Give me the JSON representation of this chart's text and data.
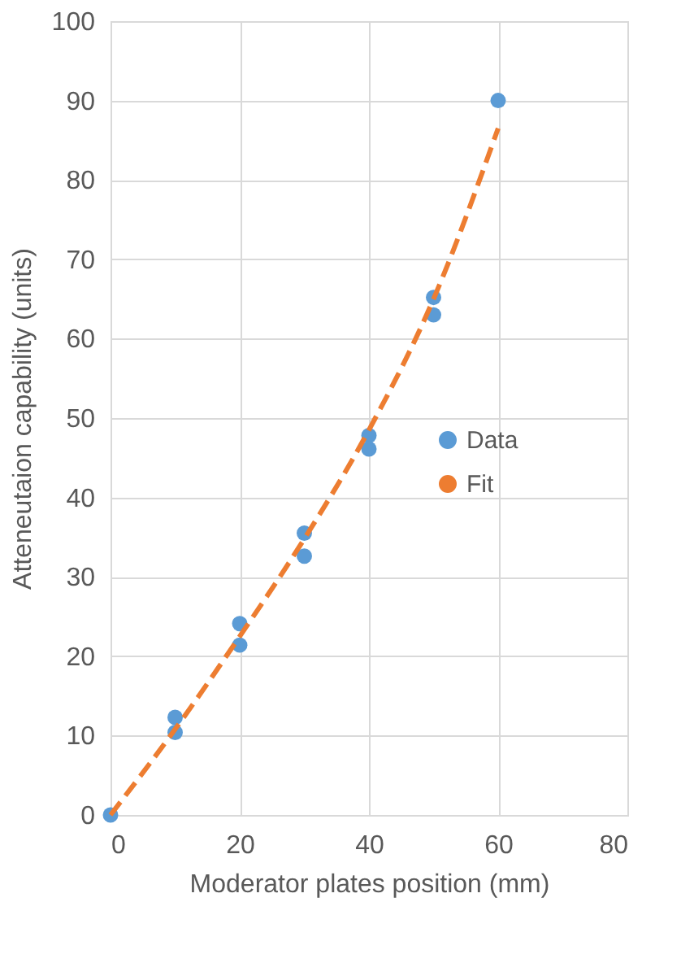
{
  "chart_data": {
    "type": "scatter",
    "xlabel": "Moderator plates position (mm)",
    "ylabel": "Atteneutaion  capability (units)",
    "xlim": [
      0,
      80
    ],
    "xticks": [
      0,
      20,
      40,
      60,
      80
    ],
    "ylim": [
      0,
      100
    ],
    "yticks": [
      0,
      10,
      20,
      30,
      40,
      50,
      60,
      70,
      80,
      90,
      100
    ],
    "grid": true,
    "legend": "right",
    "series": [
      {
        "name": "Data",
        "color": "#5b9bd5",
        "marker": "circle",
        "x": [
          0,
          10,
          10,
          20,
          20,
          30,
          30,
          40,
          40,
          50,
          50,
          60
        ],
        "values": [
          0,
          12.3,
          10.4,
          24.1,
          21.4,
          35.5,
          32.6,
          47.8,
          46.1,
          65.2,
          63,
          90
        ]
      },
      {
        "name": "Fit",
        "type": "line",
        "color": "#ed7d31",
        "line_style": "dashed",
        "marker": "none",
        "x": [
          0,
          10,
          20,
          30,
          40,
          50,
          60
        ],
        "values": [
          0,
          10.8,
          22.5,
          34.8,
          48.5,
          65,
          86.5
        ]
      }
    ]
  }
}
